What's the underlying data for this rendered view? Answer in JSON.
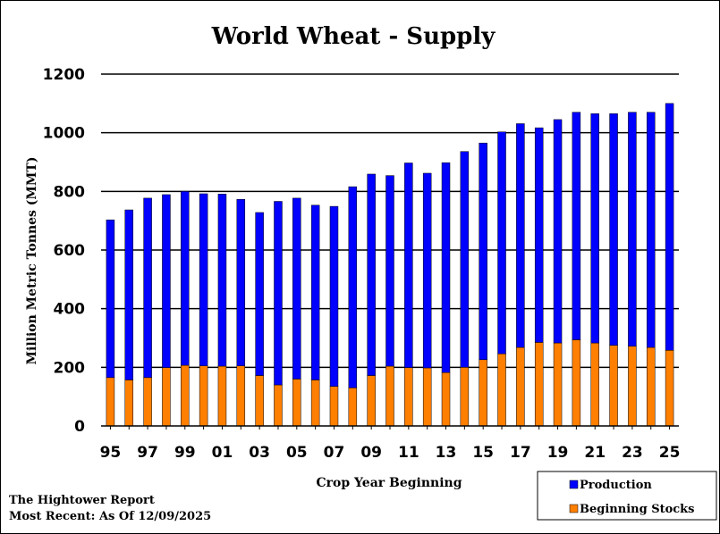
{
  "chart_data": {
    "type": "bar",
    "stacked": true,
    "title": "World Wheat - Supply",
    "xlabel": "Crop Year Beginning",
    "ylabel": "Million Metric Tonnes (MMT)",
    "ylim": [
      0,
      1200
    ],
    "yticks": [
      0,
      200,
      400,
      600,
      800,
      1000,
      1200
    ],
    "grid": true,
    "legend_position": "bottom-right",
    "categories": [
      "95",
      "96",
      "97",
      "98",
      "99",
      "00",
      "01",
      "02",
      "03",
      "04",
      "05",
      "06",
      "07",
      "08",
      "09",
      "10",
      "11",
      "12",
      "13",
      "14",
      "15",
      "16",
      "17",
      "18",
      "19",
      "20",
      "21",
      "22",
      "23",
      "24",
      "25"
    ],
    "xtick_labels": [
      "95",
      "97",
      "99",
      "01",
      "03",
      "05",
      "07",
      "09",
      "11",
      "13",
      "15",
      "17",
      "19",
      "21",
      "23",
      "25"
    ],
    "series": [
      {
        "name": "Beginning Stocks",
        "color": "#ff7f00",
        "values": [
          165,
          157,
          165,
          199,
          207,
          205,
          204,
          205,
          172,
          140,
          160,
          157,
          135,
          130,
          172,
          204,
          199,
          198,
          182,
          200,
          226,
          246,
          268,
          285,
          283,
          294,
          283,
          275,
          272,
          268,
          258
        ]
      },
      {
        "name": "Production",
        "color": "#0000ff",
        "values": [
          538,
          580,
          612,
          590,
          593,
          587,
          587,
          568,
          556,
          626,
          617,
          596,
          614,
          686,
          687,
          650,
          698,
          664,
          716,
          736,
          739,
          757,
          763,
          732,
          762,
          776,
          782,
          790,
          798,
          802,
          842
        ]
      }
    ],
    "legend": [
      "Production",
      "Beginning Stocks"
    ]
  },
  "footer": {
    "line1": "The Hightower Report",
    "line2": "Most Recent: As Of 12/09/2025"
  }
}
